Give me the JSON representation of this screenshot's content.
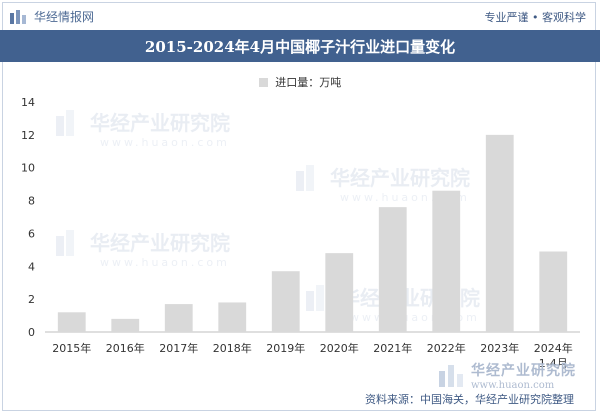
{
  "header": {
    "brand": "华经情报网",
    "tagline": "专业严谨 • 客观科学"
  },
  "chart_data": {
    "type": "bar",
    "title": "2015-2024年4月中国椰子汁行业进口量变化",
    "categories": [
      "2015年",
      "2016年",
      "2017年",
      "2018年",
      "2019年",
      "2020年",
      "2021年",
      "2022年",
      "2023年",
      "2024年"
    ],
    "category_sublabels": [
      "",
      "",
      "",
      "",
      "",
      "",
      "",
      "",
      "",
      "1-4月"
    ],
    "series": [
      {
        "name": "进口量：万吨",
        "values": [
          1.2,
          0.8,
          1.7,
          1.8,
          3.7,
          4.8,
          7.6,
          8.6,
          12.0,
          4.9
        ]
      }
    ],
    "ylim": [
      0,
      14
    ],
    "yticks": [
      0,
      2,
      4,
      6,
      8,
      10,
      12,
      14
    ],
    "grid": false,
    "legend_position": "top-center",
    "bar_color": "#d9d9d9"
  },
  "watermark": {
    "cn": "华经产业研究院",
    "url": "www.huaon.com"
  },
  "footer": {
    "source": "资料来源：中国海关，华经产业研究院整理"
  },
  "colors": {
    "title_bg": "#41618f",
    "brand": "#4d6a94"
  }
}
